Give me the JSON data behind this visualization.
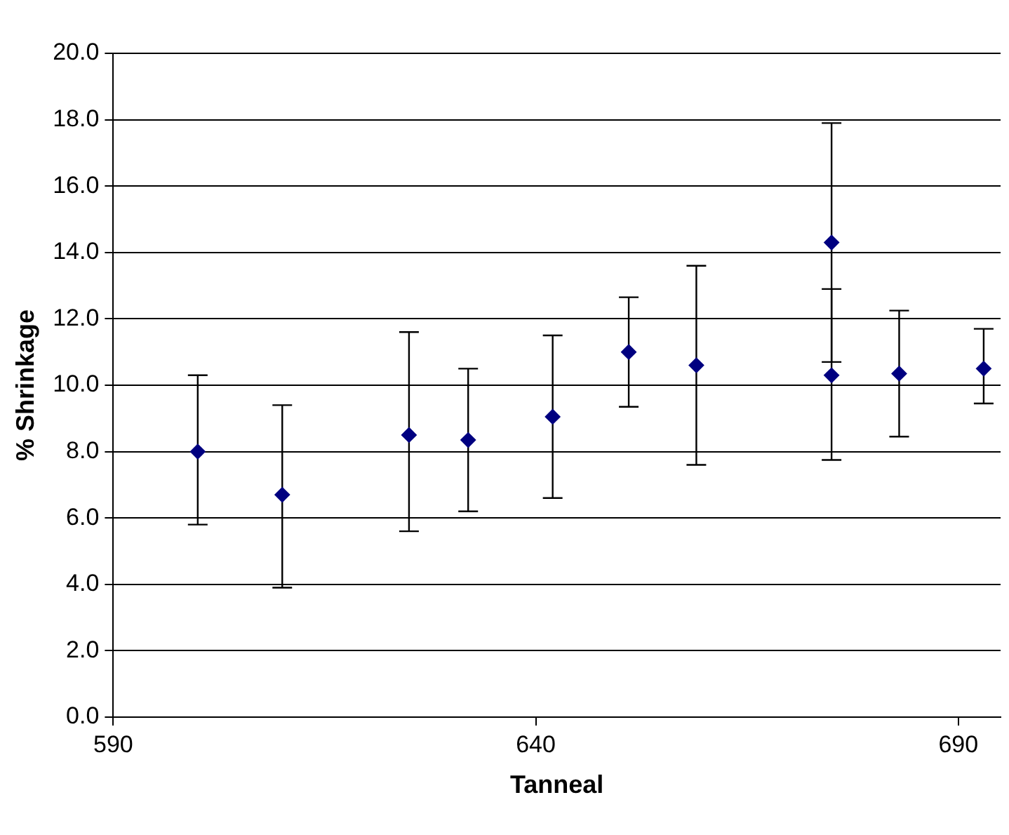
{
  "chart_data": {
    "type": "scatter",
    "xlabel": "Tanneal",
    "ylabel": "% Shrinkage",
    "x": [
      600,
      610,
      625,
      632,
      642,
      651,
      659,
      675,
      675,
      683,
      693
    ],
    "series": [
      {
        "color": "#000080",
        "values": [
          8.0,
          6.7,
          8.5,
          8.35,
          9.05,
          11.0,
          10.6,
          14.3,
          10.3,
          10.35,
          10.5
        ],
        "errors": [
          [
            5.8,
            10.3
          ],
          [
            3.9,
            9.4
          ],
          [
            5.6,
            11.6
          ],
          [
            6.2,
            10.5
          ],
          [
            6.6,
            11.5
          ],
          [
            9.35,
            12.65
          ],
          [
            7.6,
            13.6
          ],
          [
            10.7,
            17.9
          ],
          [
            7.75,
            12.9
          ],
          [
            8.45,
            12.25
          ],
          [
            9.45,
            11.7
          ]
        ]
      }
    ],
    "xlim": [
      590,
      695
    ],
    "xticks": [
      590,
      640,
      690
    ],
    "ylim": [
      0,
      20
    ],
    "yticks": [
      {
        "value": 0,
        "label": "0.0"
      },
      {
        "value": 2,
        "label": "2.0"
      },
      {
        "value": 4,
        "label": "4.0"
      },
      {
        "value": 6,
        "label": "6.0"
      },
      {
        "value": 8,
        "label": "8.0"
      },
      {
        "value": 10,
        "label": "10.0"
      },
      {
        "value": 12,
        "label": "12.0"
      },
      {
        "value": 14,
        "label": "14.0"
      },
      {
        "value": 16,
        "label": "16.0"
      },
      {
        "value": 18,
        "label": "18.0"
      },
      {
        "value": 20,
        "label": "20.0"
      }
    ],
    "grid": "y",
    "marker": "diamond",
    "legend": false
  }
}
